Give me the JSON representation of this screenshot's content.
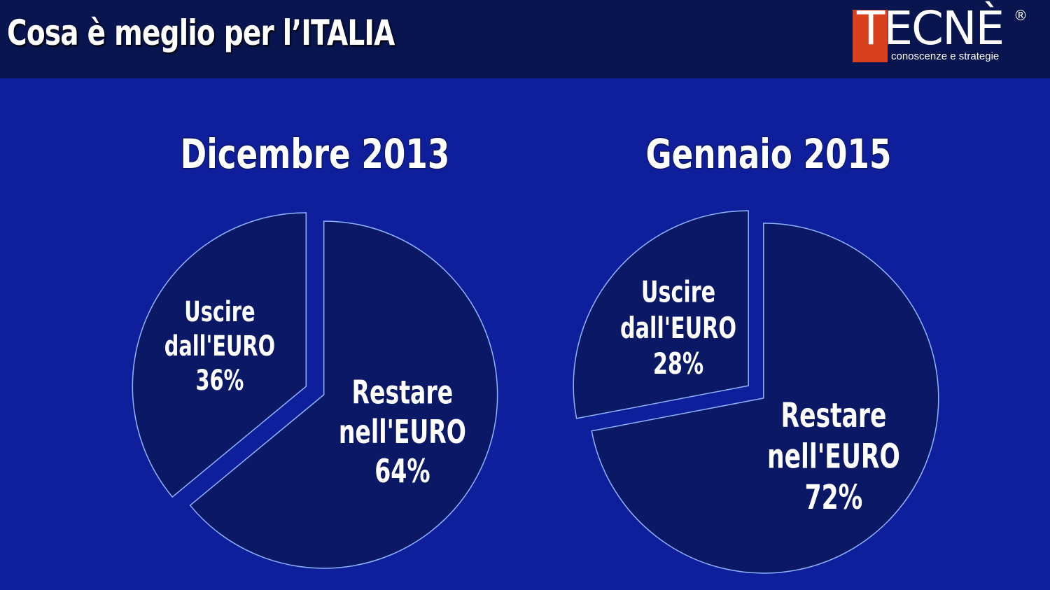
{
  "header": {
    "title": "Cosa è meglio per l’ITALIA",
    "logo": {
      "word": "TECNÈ",
      "registered": "®",
      "tagline": "conoscenze e strategie",
      "brand_color": "#d8401e"
    }
  },
  "colors": {
    "background": "#0f1f9b",
    "header_bar": "#08154f",
    "slice_fill": "#0a1866",
    "slice_stroke": "#8fb4ff",
    "text": "#ffffff"
  },
  "chart_data": [
    {
      "type": "pie",
      "title": "Dicembre 2013",
      "slices": [
        {
          "label_lines": [
            "Uscire",
            "dall'EURO",
            "36%"
          ],
          "value": 36,
          "exploded": true
        },
        {
          "label_lines": [
            "Restare",
            "nell'EURO",
            "64%"
          ],
          "value": 64,
          "exploded": true
        }
      ]
    },
    {
      "type": "pie",
      "title": "Gennaio 2015",
      "slices": [
        {
          "label_lines": [
            "Uscire",
            "dall'EURO",
            "28%"
          ],
          "value": 28,
          "exploded": true
        },
        {
          "label_lines": [
            "Restare",
            "nell'EURO",
            "72%"
          ],
          "value": 72,
          "exploded": true
        }
      ]
    }
  ]
}
